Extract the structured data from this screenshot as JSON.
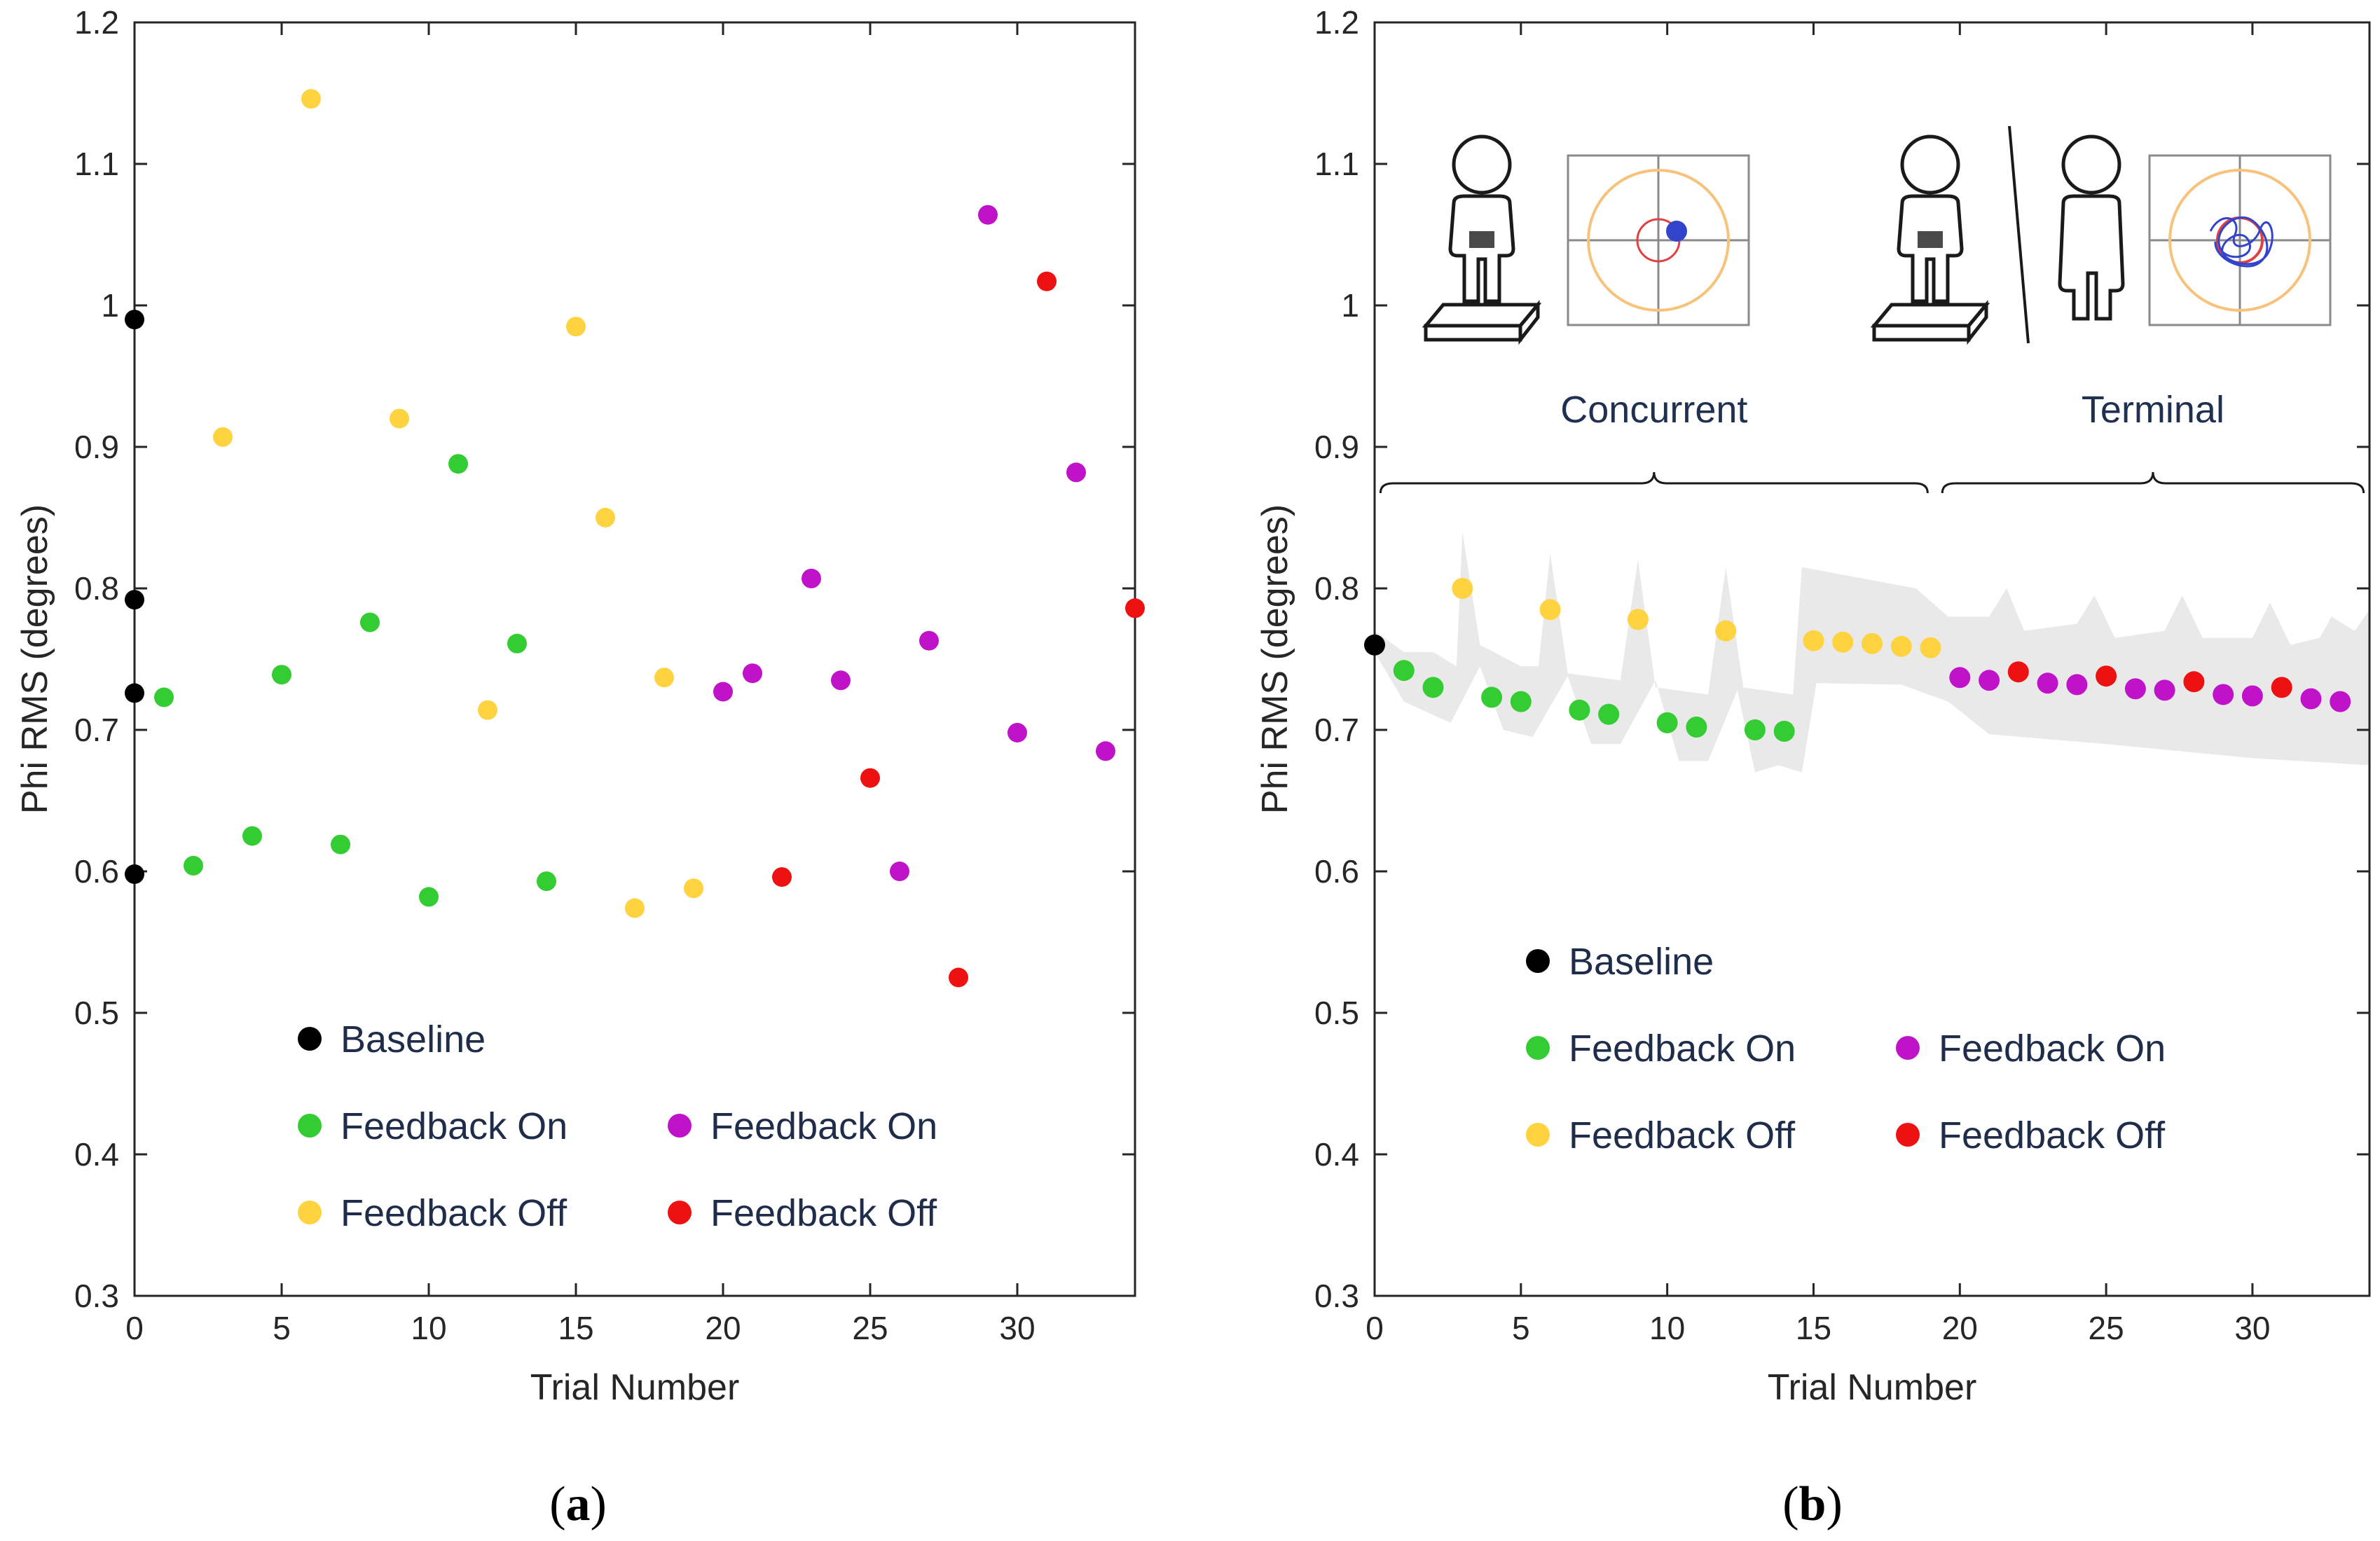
{
  "colors": {
    "baseline": "#000000",
    "concurrent_on": "#33cc33",
    "concurrent_off": "#ffd23f",
    "terminal_on": "#c013c9",
    "terminal_off": "#ee1111",
    "band": "#e9e9e9",
    "target_ring": "#f7c27a",
    "target_inner": "#e04040",
    "dot_blue": "#3344cc"
  },
  "panel_labels": {
    "a": "a",
    "b": "b"
  },
  "chart_data": [
    {
      "id": "a",
      "type": "scatter",
      "xlabel": "Trial Number",
      "ylabel": "Phi RMS (degrees)",
      "xlim": [
        0,
        34
      ],
      "ylim": [
        0.3,
        1.2
      ],
      "xticks": [
        "0",
        "5",
        "10",
        "15",
        "20",
        "25",
        "30"
      ],
      "yticks": [
        "0.3",
        "0.4",
        "0.5",
        "0.6",
        "0.7",
        "0.8",
        "0.9",
        "1",
        "1.1",
        "1.2"
      ],
      "grid": false,
      "legend_position": "bottom-left",
      "legend": [
        {
          "key": "baseline",
          "label": "Baseline"
        },
        {
          "key": "concurrent_on",
          "label": "Feedback On"
        },
        {
          "key": "terminal_on",
          "label": "Feedback On"
        },
        {
          "key": "concurrent_off",
          "label": "Feedback Off"
        },
        {
          "key": "terminal_off",
          "label": "Feedback Off"
        }
      ],
      "series": [
        {
          "key": "baseline",
          "points": [
            [
              0,
              0.99
            ],
            [
              0,
              0.792
            ],
            [
              0,
              0.726
            ],
            [
              0,
              0.598
            ]
          ]
        },
        {
          "key": "concurrent_on",
          "points": [
            [
              1,
              0.723
            ],
            [
              2,
              0.604
            ],
            [
              4,
              0.625
            ],
            [
              5,
              0.739
            ],
            [
              7,
              0.619
            ],
            [
              8,
              0.776
            ],
            [
              10,
              0.582
            ],
            [
              11,
              0.888
            ],
            [
              13,
              0.761
            ],
            [
              14,
              0.593
            ]
          ]
        },
        {
          "key": "concurrent_off",
          "points": [
            [
              3,
              0.907
            ],
            [
              6,
              1.146
            ],
            [
              9,
              0.92
            ],
            [
              12,
              0.714
            ],
            [
              15,
              0.985
            ],
            [
              16,
              0.85
            ],
            [
              17,
              0.574
            ],
            [
              18,
              0.737
            ],
            [
              19,
              0.588
            ]
          ]
        },
        {
          "key": "terminal_on",
          "points": [
            [
              20,
              0.727
            ],
            [
              21,
              0.74
            ],
            [
              23,
              0.807
            ],
            [
              24,
              0.735
            ],
            [
              26,
              0.6
            ],
            [
              27,
              0.763
            ],
            [
              29,
              1.064
            ],
            [
              30,
              0.698
            ],
            [
              32,
              0.882
            ],
            [
              33,
              0.685
            ]
          ]
        },
        {
          "key": "terminal_off",
          "points": [
            [
              22,
              0.596
            ],
            [
              25,
              0.666
            ],
            [
              28,
              0.525
            ],
            [
              31,
              1.017
            ],
            [
              34,
              0.786
            ]
          ]
        }
      ]
    },
    {
      "id": "b",
      "type": "scatter",
      "xlabel": "Trial Number",
      "ylabel": "Phi RMS (degrees)",
      "xlim": [
        0,
        34
      ],
      "ylim": [
        0.3,
        1.2
      ],
      "xticks": [
        "0",
        "5",
        "10",
        "15",
        "20",
        "25",
        "30"
      ],
      "yticks": [
        "0.3",
        "0.4",
        "0.5",
        "0.6",
        "0.7",
        "0.8",
        "0.9",
        "1",
        "1.1",
        "1.2"
      ],
      "grid": false,
      "legend_position": "bottom-left",
      "phase_labels": [
        "Concurrent",
        "Terminal"
      ],
      "legend": [
        {
          "key": "baseline",
          "label": "Baseline"
        },
        {
          "key": "concurrent_on",
          "label": "Feedback On"
        },
        {
          "key": "terminal_on",
          "label": "Feedback On"
        },
        {
          "key": "concurrent_off",
          "label": "Feedback Off"
        },
        {
          "key": "terminal_off",
          "label": "Feedback Off"
        }
      ],
      "band": {
        "upper": [
          [
            0,
            0.77
          ],
          [
            1,
            0.755
          ],
          [
            2,
            0.755
          ],
          [
            2.8,
            0.745
          ],
          [
            3,
            0.84
          ],
          [
            3.6,
            0.76
          ],
          [
            5,
            0.745
          ],
          [
            5.6,
            0.745
          ],
          [
            6,
            0.825
          ],
          [
            6.6,
            0.74
          ],
          [
            8.4,
            0.735
          ],
          [
            9,
            0.82
          ],
          [
            9.6,
            0.73
          ],
          [
            11.4,
            0.725
          ],
          [
            12,
            0.815
          ],
          [
            12.6,
            0.73
          ],
          [
            14.3,
            0.725
          ],
          [
            14.6,
            0.815
          ],
          [
            18.5,
            0.8
          ],
          [
            19.6,
            0.78
          ],
          [
            21,
            0.78
          ],
          [
            21.6,
            0.8
          ],
          [
            22.2,
            0.77
          ],
          [
            24,
            0.775
          ],
          [
            24.6,
            0.795
          ],
          [
            25.3,
            0.765
          ],
          [
            27,
            0.77
          ],
          [
            27.6,
            0.795
          ],
          [
            28.3,
            0.765
          ],
          [
            30,
            0.765
          ],
          [
            30.6,
            0.79
          ],
          [
            31.3,
            0.76
          ],
          [
            32.3,
            0.765
          ],
          [
            32.7,
            0.78
          ],
          [
            33.5,
            0.77
          ],
          [
            34,
            0.785
          ]
        ],
        "lower": [
          [
            34,
            0.675
          ],
          [
            30,
            0.68
          ],
          [
            25,
            0.69
          ],
          [
            21,
            0.697
          ],
          [
            19.6,
            0.72
          ],
          [
            18,
            0.732
          ],
          [
            15.1,
            0.733
          ],
          [
            14.6,
            0.67
          ],
          [
            13.8,
            0.675
          ],
          [
            13,
            0.67
          ],
          [
            12.4,
            0.728
          ],
          [
            11.4,
            0.678
          ],
          [
            10.4,
            0.678
          ],
          [
            9.6,
            0.735
          ],
          [
            8.4,
            0.69
          ],
          [
            7.4,
            0.69
          ],
          [
            6.6,
            0.738
          ],
          [
            5.4,
            0.695
          ],
          [
            4.4,
            0.7
          ],
          [
            3.6,
            0.745
          ],
          [
            2.6,
            0.705
          ],
          [
            1,
            0.72
          ],
          [
            0,
            0.755
          ]
        ]
      },
      "series": [
        {
          "key": "baseline",
          "points": [
            [
              0,
              0.76
            ]
          ]
        },
        {
          "key": "concurrent_on",
          "points": [
            [
              1,
              0.742
            ],
            [
              2,
              0.73
            ],
            [
              4,
              0.723
            ],
            [
              5,
              0.72
            ],
            [
              7,
              0.714
            ],
            [
              8,
              0.711
            ],
            [
              10,
              0.705
            ],
            [
              11,
              0.702
            ],
            [
              13,
              0.7
            ],
            [
              14,
              0.699
            ]
          ]
        },
        {
          "key": "concurrent_off",
          "points": [
            [
              3,
              0.8
            ],
            [
              6,
              0.785
            ],
            [
              9,
              0.778
            ],
            [
              12,
              0.77
            ],
            [
              15,
              0.763
            ],
            [
              16,
              0.762
            ],
            [
              17,
              0.761
            ],
            [
              18,
              0.759
            ],
            [
              19,
              0.758
            ]
          ]
        },
        {
          "key": "terminal_on",
          "points": [
            [
              20,
              0.737
            ],
            [
              21,
              0.735
            ],
            [
              23,
              0.733
            ],
            [
              24,
              0.732
            ],
            [
              26,
              0.729
            ],
            [
              27,
              0.728
            ],
            [
              29,
              0.725
            ],
            [
              30,
              0.724
            ],
            [
              32,
              0.722
            ],
            [
              33,
              0.72
            ]
          ]
        },
        {
          "key": "terminal_off",
          "points": [
            [
              22,
              0.741
            ],
            [
              25,
              0.738
            ],
            [
              28,
              0.734
            ],
            [
              31,
              0.73
            ]
          ]
        }
      ]
    }
  ]
}
